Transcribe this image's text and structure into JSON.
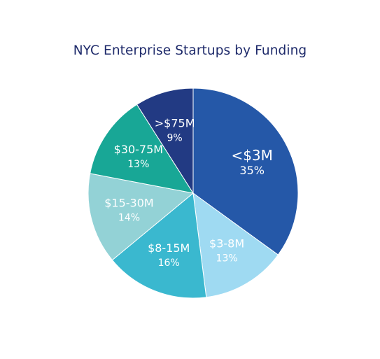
{
  "chart_data": {
    "type": "pie",
    "title": "NYC Enterprise Startups by Funding",
    "slices": [
      {
        "label": "<$3M",
        "value": 35,
        "value_label": "35%",
        "color": "#2558a8"
      },
      {
        "label": "$3-8M",
        "value": 13,
        "value_label": "13%",
        "color": "#9fdaf2"
      },
      {
        "label": "$8-15M",
        "value": 16,
        "value_label": "16%",
        "color": "#3ab8cf"
      },
      {
        "label": "$15-30M",
        "value": 14,
        "value_label": "14%",
        "color": "#93d2d6"
      },
      {
        "label": "$30-75M",
        "value": 13,
        "value_label": "13%",
        "color": "#18a796"
      },
      {
        "label": ">$75M",
        "value": 9,
        "value_label": "9%",
        "color": "#223a83"
      }
    ],
    "start": "top",
    "direction": "clockwise",
    "legend": "none"
  },
  "colors": {
    "title": "#1f2b6b",
    "background": "#ffffff",
    "slice_border": "#ffffff"
  }
}
